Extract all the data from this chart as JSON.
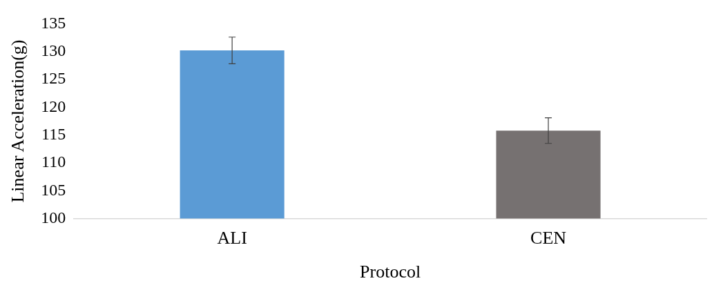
{
  "chart_data": {
    "type": "bar",
    "xlabel": "Protocol",
    "ylabel": "Linear Acceleration(g)",
    "categories": [
      "ALI",
      "CEN"
    ],
    "values": [
      130.2,
      115.8
    ],
    "colors": [
      "#5b9bd5",
      "#767171"
    ],
    "errors": [
      2.4,
      2.3
    ],
    "ylim": [
      100,
      135
    ],
    "yticks": [
      100,
      105,
      110,
      115,
      120,
      125,
      130,
      135
    ],
    "grid": false,
    "legend": false
  }
}
